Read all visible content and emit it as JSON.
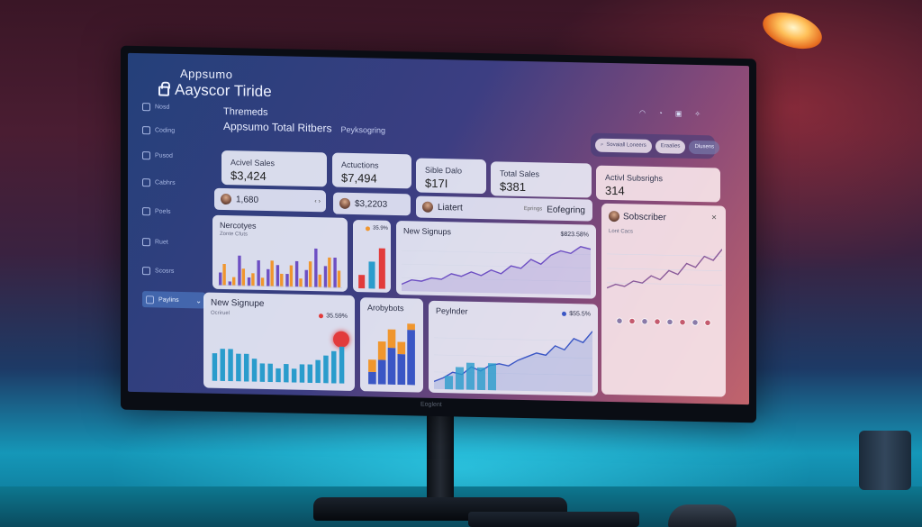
{
  "app": {
    "brand_top": "Appsumo",
    "brand_name": "Aayscor Tiride"
  },
  "sidebar": {
    "items": [
      {
        "label": "Nosd",
        "icon": "home-icon"
      },
      {
        "label": "Coding",
        "icon": "code-icon"
      },
      {
        "label": "Pusod",
        "icon": "chart-icon"
      },
      {
        "label": "Cabhrs",
        "icon": "users-icon"
      },
      {
        "label": "Poels",
        "icon": "grid-icon"
      },
      {
        "label": "Ruet",
        "icon": "clock-icon"
      },
      {
        "label": "Scosrs",
        "icon": "gear-icon"
      },
      {
        "label": "Paylins",
        "icon": "wallet-icon",
        "active": true
      }
    ]
  },
  "header": {
    "title": "Thremeds",
    "subtitle": "Appsumo Total Ritbers",
    "breadcrumb": "Peyksogring"
  },
  "toolbar": {
    "pill_1": "Sovaiall Loneers",
    "pill_2": "Eraalies",
    "pill_3": "Dlusens"
  },
  "stats": [
    {
      "label": "Acivel Sales",
      "value": "$3,424"
    },
    {
      "label": "Actuctions",
      "value": "$7,494"
    },
    {
      "label": "Sible Dalo",
      "value": "$17I"
    },
    {
      "label": "Total Sales",
      "value": "$381"
    },
    {
      "label": "Activl Subsrighs",
      "value": "314"
    }
  ],
  "minis": {
    "m1": {
      "value": "1,680"
    },
    "m2": {
      "value": "$3,2203"
    },
    "m3": {
      "value": "Liatert",
      "right": "Eofegring",
      "small": "Eprings"
    }
  },
  "subscriber": {
    "title": "Sobscriber",
    "sub": "Lont Cacs",
    "close": "×"
  },
  "panels": {
    "nercotyes": {
      "title": "Nercotyes",
      "sub": "Zonte Cfuts"
    },
    "small_pct": {
      "value": "35.9%"
    },
    "new_signups": {
      "title": "New Signups",
      "pct": "$823.58%"
    },
    "new_signupe": {
      "title": "New Signupe",
      "sub": "Ocriruel",
      "pct": "35.59%"
    },
    "arobybots": {
      "title": "Arobybots"
    },
    "peylnder": {
      "title": "Peylnder",
      "pct": "$55.5%"
    }
  },
  "bezel": "Eoglent",
  "colors": {
    "accent": "#3d6fe0",
    "blue": "#3a56c5",
    "purple": "#6d4fc3",
    "orange": "#f0962e",
    "teal": "#2a9ccc",
    "red": "#e23b3b"
  },
  "chart_data": [
    {
      "type": "bar",
      "title": "Nercotyes",
      "series": [
        {
          "values": [
            3,
            1,
            7,
            2,
            6,
            4,
            5,
            3,
            6,
            4,
            9,
            5,
            7
          ]
        },
        {
          "values": [
            5,
            2,
            4,
            3,
            2,
            6,
            3,
            5,
            2,
            6,
            3,
            7,
            4
          ]
        }
      ]
    },
    {
      "type": "bar",
      "title": "35.9%",
      "values": [
        3,
        6,
        9
      ]
    },
    {
      "type": "area",
      "title": "New Signups",
      "values": [
        6,
        10,
        9,
        12,
        11,
        16,
        14,
        18,
        15,
        20,
        17,
        24,
        22,
        30,
        26,
        34,
        38,
        36,
        42,
        40
      ]
    },
    {
      "type": "bar",
      "title": "New Signupe",
      "values": [
        6,
        7,
        7,
        6,
        6,
        5,
        4,
        4,
        3,
        4,
        3,
        4,
        4,
        5,
        6,
        7,
        8
      ]
    },
    {
      "type": "bar",
      "title": "Arobybots",
      "series": [
        {
          "values": [
            2,
            4,
            6,
            5,
            9
          ]
        },
        {
          "values": [
            2,
            3,
            3,
            2,
            1
          ]
        }
      ]
    },
    {
      "type": "area",
      "title": "Peylnder",
      "values": [
        4,
        6,
        9,
        8,
        12,
        10,
        13,
        14,
        13,
        16,
        18,
        20,
        19,
        24,
        22,
        28,
        26,
        32
      ]
    },
    {
      "type": "line",
      "title": "Sobscriber",
      "values": [
        10,
        14,
        12,
        18,
        16,
        24,
        20,
        30,
        26,
        38,
        34,
        46,
        42,
        54
      ]
    }
  ]
}
